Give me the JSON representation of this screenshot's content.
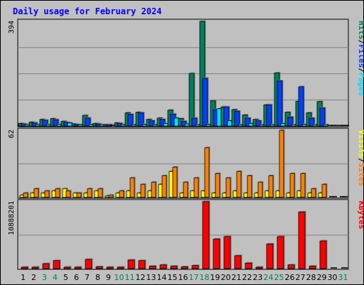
{
  "colors": {
    "hits": "#00805c",
    "files": "#0040ff",
    "pages": "#00e0ff",
    "visits": "#ffff00",
    "sites": "#ff8000",
    "kbytes": "#ff0000",
    "plot_bg": "#c0c0c0",
    "weekend_day": "#00805c",
    "weekday_day": "#000000",
    "title": "#0000ff"
  },
  "chart_data": {
    "type": "bar",
    "title": "Daily usage for February 2024",
    "days": [
      "1",
      "2",
      "3",
      "4",
      "5",
      "6",
      "7",
      "8",
      "9",
      "10",
      "11",
      "12",
      "13",
      "14",
      "15",
      "16",
      "17",
      "18",
      "19",
      "20",
      "21",
      "22",
      "23",
      "24",
      "25",
      "26",
      "27",
      "28",
      "29",
      "30",
      "31"
    ],
    "weekend_days": [
      3,
      4,
      10,
      11,
      17,
      18,
      24,
      25,
      31
    ],
    "panels": [
      {
        "name": "hits-files-pages",
        "ymax_label": "394",
        "ymax": 394,
        "legend": [
          {
            "label": "Hits",
            "color_key": "hits"
          },
          {
            "label": "/",
            "color_key": "weekday_day"
          },
          {
            "label": "Files",
            "color_key": "files"
          },
          {
            "label": "/",
            "color_key": "weekday_day"
          },
          {
            "label": "Pages",
            "color_key": "pages"
          }
        ],
        "series": [
          {
            "name": "Hits",
            "color_key": "hits",
            "values": [
              10,
              15,
              25,
              28,
              18,
              8,
              40,
              10,
              2,
              12,
              50,
              52,
              25,
              30,
              60,
              28,
              198,
              394,
              95,
              72,
              62,
              42,
              25,
              80,
              200,
              52,
              93,
              50,
              92,
              0,
              0
            ]
          },
          {
            "name": "Files",
            "color_key": "files",
            "values": [
              8,
              12,
              22,
              24,
              14,
              6,
              30,
              8,
              2,
              10,
              44,
              50,
              20,
              25,
              45,
              18,
              30,
              180,
              62,
              72,
              56,
              30,
              20,
              80,
              170,
              34,
              148,
              30,
              68,
              0,
              0
            ]
          },
          {
            "name": "Pages",
            "color_key": "pages",
            "values": [
              3,
              4,
              5,
              6,
              12,
              2,
              6,
              3,
              0,
              2,
              5,
              6,
              5,
              10,
              30,
              8,
              3,
              6,
              65,
              20,
              5,
              10,
              4,
              5,
              10,
              5,
              6,
              5,
              5,
              0,
              0
            ]
          }
        ]
      },
      {
        "name": "visits-sites",
        "ymax_label": "62",
        "ymax": 62,
        "legend": [
          {
            "label": "Visits",
            "color_key": "visits"
          },
          {
            "label": "/",
            "color_key": "weekday_day"
          },
          {
            "label": "Sites",
            "color_key": "sites"
          }
        ],
        "series": [
          {
            "name": "Visits",
            "color_key": "visits",
            "values": [
              2,
              4,
              4,
              6,
              8,
              4,
              4,
              6,
              1,
              4,
              6,
              4,
              6,
              12,
              24,
              4,
              6,
              6,
              4,
              4,
              6,
              4,
              4,
              6,
              6,
              4,
              6,
              4,
              4,
              0,
              0
            ]
          },
          {
            "name": "Sites",
            "color_key": "sites",
            "values": [
              4,
              8,
              6,
              8,
              6,
              4,
              8,
              8,
              2,
              6,
              18,
              12,
              14,
              20,
              28,
              14,
              18,
              46,
              22,
              18,
              24,
              20,
              14,
              20,
              62,
              22,
              22,
              8,
              12,
              0,
              0
            ]
          }
        ]
      },
      {
        "name": "kbytes",
        "ymax_label": "10888201",
        "ymax": 10888201,
        "legend": [
          {
            "label": "KBytes",
            "color_key": "kbytes"
          }
        ],
        "series": [
          {
            "name": "KBytes",
            "color_key": "kbytes",
            "values": [
              200000,
              200000,
              800000,
              1300000,
              100000,
              100000,
              1500000,
              300000,
              100000,
              200000,
              1400000,
              1300000,
              400000,
              600000,
              400000,
              300000,
              500000,
              10888201,
              4800000,
              5200000,
              2100000,
              900000,
              200000,
              4000000,
              5200000,
              600000,
              9200000,
              400000,
              4500000,
              0,
              0
            ]
          }
        ]
      }
    ]
  }
}
